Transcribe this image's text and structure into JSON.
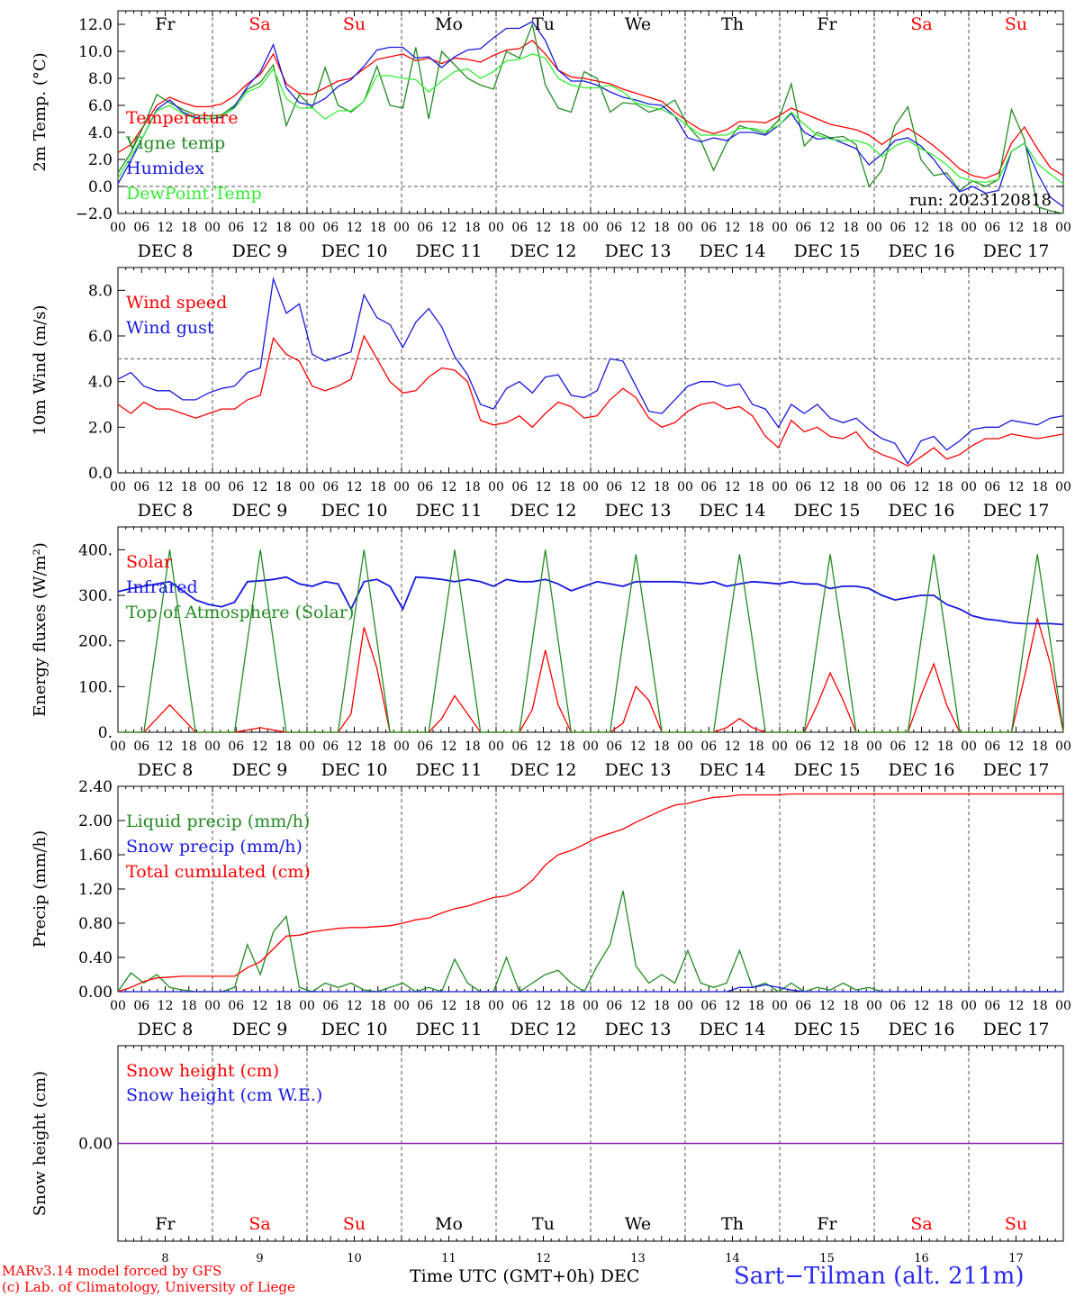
{
  "colors": {
    "red": "#ff0000",
    "darkgreen": "#228b22",
    "blue": "#1818e0",
    "lightgreen": "#33ee33",
    "purple": "#8b22b0",
    "black": "#000000"
  },
  "x_days": {
    "ticks": [
      "00",
      "06",
      "12",
      "18",
      "00",
      "06",
      "12",
      "18",
      "00",
      "06",
      "12",
      "18",
      "00",
      "06",
      "12",
      "18",
      "00",
      "06",
      "12",
      "18",
      "00",
      "06",
      "12",
      "18",
      "00",
      "06",
      "12",
      "18",
      "00",
      "06",
      "12",
      "18",
      "00",
      "06",
      "12",
      "18",
      "00",
      "06",
      "12",
      "18",
      "00"
    ],
    "dates": [
      "DEC  8",
      "DEC  9",
      "DEC 10",
      "DEC 11",
      "DEC 12",
      "DEC 13",
      "DEC 14",
      "DEC 15",
      "DEC 16",
      "DEC 17"
    ],
    "weekdays": [
      "Fr",
      "Sa",
      "Su",
      "Mo",
      "Tu",
      "We",
      "Th",
      "Fr",
      "Sa",
      "Su"
    ],
    "weekday_colors": [
      "#000000",
      "#ff0000",
      "#ff0000",
      "#000000",
      "#000000",
      "#000000",
      "#000000",
      "#000000",
      "#ff0000",
      "#ff0000"
    ],
    "day_numbers": [
      "8",
      "9",
      "10",
      "11",
      "12",
      "13",
      "14",
      "15",
      "16",
      "17"
    ]
  },
  "chart_data": [
    {
      "type": "line",
      "id": "temp",
      "ylabel": "2m Temp. (°C)",
      "ylim": [
        -2.0,
        13.0
      ],
      "yticks": [
        "-2.0",
        "0.0",
        "2.0",
        "4.0",
        "6.0",
        "8.0",
        "10.0",
        "12.0"
      ],
      "dashed_ref": 0.0,
      "annotation": "run: 2023120818",
      "x_hours_step": 6,
      "series": [
        {
          "name": "Temperature",
          "color": "#ff0000",
          "values": [
            2.5,
            3.1,
            4.5,
            6.0,
            6.6,
            6.2,
            5.9,
            5.9,
            6.1,
            6.7,
            7.6,
            8.3,
            9.8,
            7.6,
            6.9,
            6.8,
            7.3,
            7.8,
            8.0,
            8.7,
            9.4,
            9.6,
            9.8,
            9.3,
            9.5,
            9.1,
            9.5,
            9.4,
            9.2,
            9.7,
            10.1,
            10.2,
            10.8,
            9.8,
            8.6,
            8.1,
            8.0,
            7.8,
            7.6,
            7.2,
            6.9,
            6.6,
            6.3,
            5.5,
            4.8,
            4.2,
            3.9,
            4.2,
            4.8,
            4.8,
            4.7,
            5.2,
            5.8,
            5.4,
            5.0,
            4.6,
            4.4,
            4.2,
            3.8,
            3.1,
            3.8,
            4.3,
            3.7,
            3.0,
            2.2,
            1.3,
            0.8,
            0.6,
            1.0,
            3.2,
            4.4,
            2.8,
            1.4,
            0.8
          ]
        },
        {
          "name": "Vigne temp",
          "color": "#228b22",
          "values": [
            1.0,
            2.5,
            4.5,
            6.8,
            6.2,
            5.7,
            5.3,
            5.2,
            5.3,
            6.0,
            7.2,
            7.7,
            9.0,
            4.5,
            6.8,
            5.8,
            8.8,
            6.0,
            5.5,
            6.3,
            8.9,
            6.0,
            5.8,
            10.3,
            5.0,
            10.0,
            9.0,
            8.0,
            7.5,
            7.2,
            10.0,
            9.5,
            12.0,
            7.5,
            5.8,
            5.5,
            8.5,
            8.0,
            5.5,
            6.2,
            6.1,
            5.5,
            5.8,
            6.4,
            4.5,
            3.4,
            1.2,
            3.2,
            4.5,
            4.2,
            3.9,
            4.9,
            7.6,
            3.0,
            4.0,
            3.6,
            3.7,
            3.1,
            0.0,
            1.2,
            4.5,
            5.9,
            2.0,
            0.8,
            1.0,
            -0.3,
            0.4,
            0.0,
            0.5,
            5.7,
            3.5,
            -1.5,
            -1.8,
            -2.0
          ]
        },
        {
          "name": "Humidex",
          "color": "#1818e0",
          "values": [
            0.2,
            1.9,
            3.8,
            5.7,
            6.4,
            5.5,
            5.1,
            5.0,
            5.1,
            5.9,
            7.4,
            8.5,
            10.5,
            7.3,
            6.2,
            6.0,
            6.5,
            7.4,
            7.9,
            8.9,
            10.1,
            10.3,
            10.3,
            9.5,
            9.6,
            8.8,
            9.6,
            10.1,
            10.2,
            11.0,
            11.7,
            11.7,
            12.2,
            10.8,
            8.6,
            7.8,
            7.8,
            7.5,
            7.0,
            6.6,
            6.4,
            6.1,
            6.0,
            5.2,
            3.6,
            3.3,
            3.6,
            3.4,
            4.0,
            4.0,
            3.8,
            4.5,
            5.4,
            4.0,
            3.5,
            3.6,
            3.2,
            2.8,
            1.6,
            2.4,
            3.4,
            3.6,
            3.0,
            2.0,
            0.7,
            -0.4,
            0.0,
            -0.5,
            -0.3,
            2.6,
            3.2,
            1.0,
            -0.8,
            -1.5
          ]
        },
        {
          "name": "DewPoint Temp",
          "color": "#33ee33",
          "values": [
            0.6,
            2.2,
            3.8,
            5.6,
            6.0,
            5.4,
            5.0,
            5.0,
            5.2,
            5.8,
            7.0,
            7.4,
            8.7,
            6.5,
            5.8,
            5.8,
            5.0,
            5.6,
            5.6,
            6.3,
            8.2,
            8.2,
            8.0,
            7.9,
            7.0,
            7.8,
            8.5,
            8.7,
            8.0,
            8.5,
            9.3,
            9.4,
            9.8,
            9.5,
            8.0,
            7.5,
            7.3,
            7.3,
            7.5,
            7.0,
            6.2,
            5.9,
            5.7,
            5.2,
            4.5,
            3.8,
            3.8,
            3.8,
            4.3,
            4.3,
            4.1,
            4.5,
            5.5,
            4.6,
            3.8,
            3.5,
            3.4,
            3.4,
            3.1,
            2.2,
            3.0,
            3.4,
            2.8,
            2.3,
            1.6,
            0.7,
            0.4,
            0.3,
            0.5,
            2.6,
            3.2,
            1.7,
            0.9,
            0.2
          ]
        }
      ]
    },
    {
      "type": "line",
      "id": "wind",
      "ylabel": "10m Wind (m/s)",
      "ylim": [
        0.0,
        9.0
      ],
      "yticks": [
        "0.0",
        "2.0",
        "4.0",
        "6.0",
        "8.0"
      ],
      "dashed_ref": 5.0,
      "x_hours_step": 6,
      "series": [
        {
          "name": "Wind speed",
          "color": "#ff0000",
          "values": [
            3.0,
            2.6,
            3.1,
            2.8,
            2.8,
            2.6,
            2.4,
            2.6,
            2.8,
            2.8,
            3.2,
            3.4,
            5.9,
            5.2,
            4.9,
            3.8,
            3.6,
            3.8,
            4.1,
            6.0,
            5.0,
            4.0,
            3.5,
            3.6,
            4.2,
            4.6,
            4.5,
            4.0,
            2.3,
            2.1,
            2.2,
            2.5,
            2.0,
            2.6,
            3.1,
            2.9,
            2.4,
            2.5,
            3.2,
            3.7,
            3.3,
            2.4,
            2.0,
            2.2,
            2.7,
            3.0,
            3.1,
            2.8,
            2.9,
            2.5,
            1.6,
            1.1,
            2.3,
            1.8,
            2.0,
            1.6,
            1.5,
            1.8,
            1.1,
            0.8,
            0.6,
            0.3,
            0.7,
            1.1,
            0.6,
            0.8,
            1.2,
            1.5,
            1.5,
            1.7,
            1.6,
            1.5,
            1.6,
            1.7
          ]
        },
        {
          "name": "Wind gust",
          "color": "#1818e0",
          "values": [
            4.1,
            4.4,
            3.8,
            3.6,
            3.6,
            3.2,
            3.2,
            3.5,
            3.7,
            3.8,
            4.4,
            4.6,
            8.5,
            7.0,
            7.4,
            5.2,
            4.9,
            5.1,
            5.3,
            7.8,
            6.8,
            6.5,
            5.5,
            6.6,
            7.2,
            6.4,
            5.1,
            4.3,
            3.0,
            2.8,
            3.7,
            4.0,
            3.5,
            4.2,
            4.3,
            3.4,
            3.3,
            3.6,
            5.0,
            4.9,
            3.8,
            2.7,
            2.6,
            3.2,
            3.8,
            4.0,
            4.0,
            3.8,
            3.9,
            3.0,
            2.8,
            2.0,
            3.0,
            2.6,
            3.0,
            2.4,
            2.2,
            2.4,
            1.9,
            1.5,
            1.3,
            0.4,
            1.4,
            1.6,
            1.0,
            1.4,
            1.9,
            2.0,
            2.0,
            2.3,
            2.2,
            2.1,
            2.4,
            2.5
          ]
        }
      ]
    },
    {
      "type": "line",
      "id": "energy",
      "ylabel": "Energy fluxes (W/m²)",
      "ylim": [
        0,
        450
      ],
      "yticks": [
        "0.",
        "100.",
        "200.",
        "300.",
        "400."
      ],
      "x_hours_step": 6,
      "series": [
        {
          "name": "Solar",
          "color": "#ff0000",
          "values": [
            0,
            0,
            0,
            30,
            60,
            30,
            0,
            0,
            0,
            0,
            5,
            10,
            5,
            0,
            0,
            0,
            0,
            0,
            40,
            230,
            140,
            0,
            0,
            0,
            0,
            30,
            80,
            40,
            0,
            0,
            0,
            0,
            50,
            180,
            60,
            0,
            0,
            0,
            0,
            20,
            100,
            70,
            0,
            0,
            0,
            0,
            0,
            10,
            30,
            10,
            0,
            0,
            0,
            0,
            60,
            130,
            70,
            0,
            0,
            0,
            0,
            0,
            80,
            150,
            60,
            0,
            0,
            0,
            0,
            0,
            120,
            250,
            150,
            0
          ]
        },
        {
          "name": "Infrared",
          "color": "#1818e0",
          "values": [
            308,
            315,
            320,
            325,
            330,
            310,
            290,
            280,
            275,
            285,
            330,
            332,
            335,
            340,
            325,
            320,
            330,
            325,
            270,
            330,
            335,
            320,
            270,
            340,
            338,
            335,
            330,
            335,
            330,
            320,
            335,
            330,
            330,
            335,
            325,
            310,
            320,
            330,
            325,
            320,
            330,
            330,
            330,
            330,
            328,
            325,
            330,
            320,
            325,
            330,
            328,
            325,
            330,
            325,
            325,
            315,
            320,
            320,
            315,
            300,
            290,
            295,
            300,
            300,
            280,
            270,
            255,
            248,
            245,
            240,
            238,
            238,
            238,
            236
          ]
        },
        {
          "name": "Top of Atmosphere (Solar)",
          "color": "#228b22",
          "values": [
            0,
            0,
            0,
            200,
            400,
            200,
            0,
            0,
            0,
            0,
            200,
            400,
            200,
            0,
            0,
            0,
            0,
            0,
            200,
            400,
            200,
            0,
            0,
            0,
            0,
            200,
            400,
            200,
            0,
            0,
            0,
            0,
            200,
            400,
            200,
            0,
            0,
            0,
            0,
            200,
            390,
            200,
            0,
            0,
            0,
            0,
            0,
            200,
            390,
            200,
            0,
            0,
            0,
            0,
            200,
            390,
            200,
            0,
            0,
            0,
            0,
            0,
            200,
            390,
            200,
            0,
            0,
            0,
            0,
            0,
            200,
            390,
            200,
            0
          ]
        }
      ]
    },
    {
      "type": "line",
      "id": "precip",
      "ylabel": "Precip (mm/h)",
      "ylim": [
        0.0,
        2.4
      ],
      "yticks": [
        "0.00",
        "0.40",
        "0.80",
        "1.20",
        "1.60",
        "2.00",
        "2.40"
      ],
      "x_hours_step": 6,
      "series": [
        {
          "name": "Liquid precip (mm/h)",
          "color": "#228b22",
          "values": [
            0.0,
            0.22,
            0.1,
            0.2,
            0.05,
            0.02,
            0.0,
            0.0,
            0.0,
            0.05,
            0.55,
            0.2,
            0.7,
            0.88,
            0.05,
            0.0,
            0.1,
            0.05,
            0.1,
            0.02,
            0.0,
            0.05,
            0.1,
            0.0,
            0.05,
            0.0,
            0.38,
            0.1,
            0.0,
            0.0,
            0.4,
            0.0,
            0.1,
            0.2,
            0.25,
            0.1,
            0.0,
            0.3,
            0.55,
            1.18,
            0.3,
            0.1,
            0.2,
            0.1,
            0.48,
            0.1,
            0.05,
            0.1,
            0.48,
            0.05,
            0.1,
            0.0,
            0.1,
            0.0,
            0.05,
            0.02,
            0.1,
            0.02,
            0.05,
            0.0,
            0.0,
            0.0,
            0.0,
            0.0,
            0.0,
            0.0,
            0.0,
            0.0,
            0.0,
            0.0,
            0.0,
            0.0,
            0.0,
            0.0
          ]
        },
        {
          "name": "Snow precip (mm/h)",
          "color": "#1818e0",
          "values": [
            0,
            0,
            0,
            0,
            0,
            0,
            0,
            0,
            0,
            0,
            0,
            0,
            0,
            0,
            0,
            0,
            0,
            0,
            0,
            0,
            0,
            0,
            0,
            0,
            0,
            0,
            0,
            0,
            0,
            0,
            0,
            0,
            0,
            0,
            0,
            0,
            0,
            0,
            0,
            0,
            0,
            0,
            0,
            0,
            0,
            0,
            0,
            0,
            0.05,
            0.05,
            0.08,
            0.05,
            0.02,
            0.0,
            0,
            0,
            0,
            0,
            0,
            0,
            0,
            0,
            0,
            0,
            0,
            0,
            0,
            0,
            0,
            0,
            0,
            0,
            0,
            0
          ]
        },
        {
          "name": "Total cumulated (cm)",
          "color": "#ff0000",
          "values": [
            0.0,
            0.05,
            0.12,
            0.16,
            0.17,
            0.18,
            0.18,
            0.18,
            0.18,
            0.18,
            0.28,
            0.35,
            0.5,
            0.65,
            0.66,
            0.7,
            0.72,
            0.74,
            0.75,
            0.75,
            0.76,
            0.77,
            0.8,
            0.84,
            0.86,
            0.92,
            0.97,
            1.0,
            1.05,
            1.1,
            1.12,
            1.18,
            1.3,
            1.48,
            1.6,
            1.65,
            1.72,
            1.8,
            1.85,
            1.9,
            1.98,
            2.05,
            2.12,
            2.18,
            2.2,
            2.24,
            2.27,
            2.28,
            2.3,
            2.3,
            2.3,
            2.3,
            2.31,
            2.31,
            2.31,
            2.31,
            2.31,
            2.31,
            2.31,
            2.31,
            2.31,
            2.31,
            2.31,
            2.31,
            2.31,
            2.31,
            2.31,
            2.31,
            2.31,
            2.31,
            2.31,
            2.31,
            2.31,
            2.31
          ]
        }
      ]
    },
    {
      "type": "line",
      "id": "snow",
      "ylabel": "Snow height (cm)",
      "ylim": [
        -1.0,
        1.0
      ],
      "yticks": [
        "0.00"
      ],
      "x_hours_step": 6,
      "series": [
        {
          "name": "Snow height (cm)",
          "color": "#ff0000",
          "values": [
            0,
            0
          ]
        },
        {
          "name": "Snow height (cm W.E.)",
          "color": "#1818e0",
          "values": [
            0,
            0
          ]
        }
      ]
    }
  ],
  "footer": {
    "model_line": "MARv3.14 model forced by GFS",
    "copyright_line": "(c) Lab. of Climatology, University of Liege",
    "xtitle": "Time UTC (GMT+0h) DEC",
    "station": "Sart−Tilman (alt. 211m)"
  }
}
